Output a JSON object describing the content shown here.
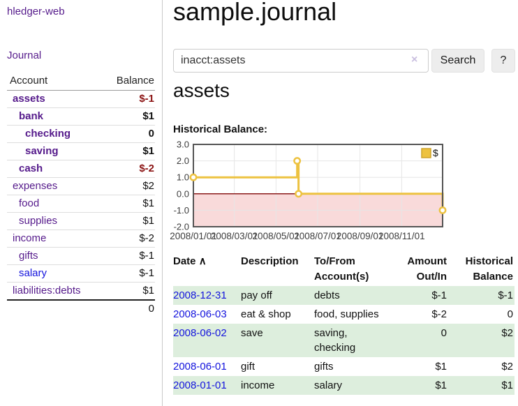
{
  "app": {
    "brand": "hledger-web"
  },
  "sidebar": {
    "nav": {
      "journal_label": "Journal"
    },
    "accounts": {
      "col_account": "Account",
      "col_balance": "Balance",
      "rows": [
        {
          "name": "assets",
          "depth": 1,
          "highlighted": true,
          "balance": "$-1"
        },
        {
          "name": "bank",
          "depth": 2,
          "highlighted": true,
          "balance": "$1"
        },
        {
          "name": "checking",
          "depth": 3,
          "highlighted": true,
          "balance": "0"
        },
        {
          "name": "saving",
          "depth": 3,
          "highlighted": true,
          "balance": "$1"
        },
        {
          "name": "cash",
          "depth": 2,
          "highlighted": true,
          "balance": "$-2"
        },
        {
          "name": "expenses",
          "depth": 1,
          "highlighted": false,
          "balance": "$2"
        },
        {
          "name": "food",
          "depth": 2,
          "highlighted": false,
          "balance": "$1"
        },
        {
          "name": "supplies",
          "depth": 2,
          "highlighted": false,
          "balance": "$1"
        },
        {
          "name": "income",
          "depth": 1,
          "highlighted": false,
          "balance": "$-2"
        },
        {
          "name": "gifts",
          "depth": 2,
          "highlighted": false,
          "balance": "$-1"
        },
        {
          "name": "salary",
          "depth": 2,
          "highlighted": false,
          "unvisited_link": true,
          "balance": "$-1"
        },
        {
          "name": "liabilities:debts",
          "depth": 1,
          "highlighted": false,
          "balance": "$1"
        }
      ],
      "total": "0"
    }
  },
  "main": {
    "title": "sample.journal",
    "search": {
      "value": "inacct:assets",
      "clear_icon": "×",
      "search_label": "Search",
      "help_label": "?"
    },
    "account_heading": "assets",
    "section_label": "Historical Balance:"
  },
  "register": {
    "columns": [
      "Date",
      "Description",
      "To/From Account(s)",
      "Amount Out/In",
      "Historical Balance"
    ],
    "sort_caret": "∧",
    "rows": [
      {
        "date": "2008-12-31",
        "description": "pay off",
        "accounts": "debts",
        "amount": "$-1",
        "balance": "$-1"
      },
      {
        "date": "2008-06-03",
        "description": "eat & shop",
        "accounts": "food, supplies",
        "amount": "$-2",
        "balance": "0"
      },
      {
        "date": "2008-06-02",
        "description": "save",
        "accounts": "saving, checking",
        "amount": "0",
        "balance": "$2"
      },
      {
        "date": "2008-06-01",
        "description": "gift",
        "accounts": "gifts",
        "amount": "$1",
        "balance": "$2"
      },
      {
        "date": "2008-01-01",
        "description": "income",
        "accounts": "salary",
        "amount": "$1",
        "balance": "$1"
      }
    ]
  },
  "chart_data": {
    "type": "line",
    "style": "steps",
    "title": "Historical Balance:",
    "series": [
      {
        "name": "$",
        "color": "#edc240",
        "points": [
          [
            "2008-01-01",
            1
          ],
          [
            "2008-06-01",
            2
          ],
          [
            "2008-06-03",
            0
          ],
          [
            "2008-12-31",
            -1
          ]
        ]
      }
    ],
    "xlim": [
      "2008-01-01",
      "2008-12-31"
    ],
    "ylim": [
      -2,
      3
    ],
    "y_ticks": [
      3.0,
      2.0,
      1.0,
      0.0,
      -1.0,
      -2.0
    ],
    "x_ticks": [
      "2008/01/01",
      "2008/03/01",
      "2008/05/01",
      "2008/07/01",
      "2008/09/01",
      "2008/11/01"
    ],
    "grid": true,
    "legend_position": "top-right",
    "negative_region_color": "#f9dada",
    "zero_line_color": "#8b1a1a",
    "grid_color": "#e6e6e6",
    "border_color": "#545454"
  },
  "colors": {
    "visited_link_purple": "#551a8b",
    "unvisited_link_blue": "#1414dd",
    "negative_strong_red": "#8b1313",
    "negative_soft_rose": "#c26f7c",
    "row_highlight_green": "#ddeedd",
    "chart_line_gold": "#edc240"
  }
}
